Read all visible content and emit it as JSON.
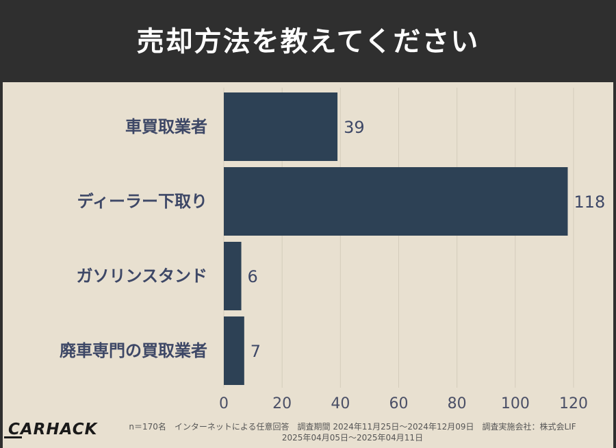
{
  "header": {
    "title": "売却方法を教えてください"
  },
  "chart_data": {
    "type": "bar",
    "orientation": "horizontal",
    "title": "売却方法を教えてください",
    "categories": [
      "車買取業者",
      "ディーラー下取り",
      "ガソリンスタンド",
      "廃車専門の買取業者"
    ],
    "values": [
      39,
      118,
      6,
      7
    ],
    "xlim": [
      0,
      120
    ],
    "xticks": [
      0,
      20,
      40,
      60,
      80,
      100,
      120
    ],
    "xlabel": "",
    "ylabel": "",
    "grid": true,
    "color": "#2d4155"
  },
  "footer": {
    "note_line1": "n＝170名　インターネットによる任意回答　調査期間 2024年11月25日〜2024年12月09日　調査実施会社：株式会LIF",
    "note_line2": "2025年04月05日〜2025年04月11日",
    "logo_text": "CARHACK"
  }
}
